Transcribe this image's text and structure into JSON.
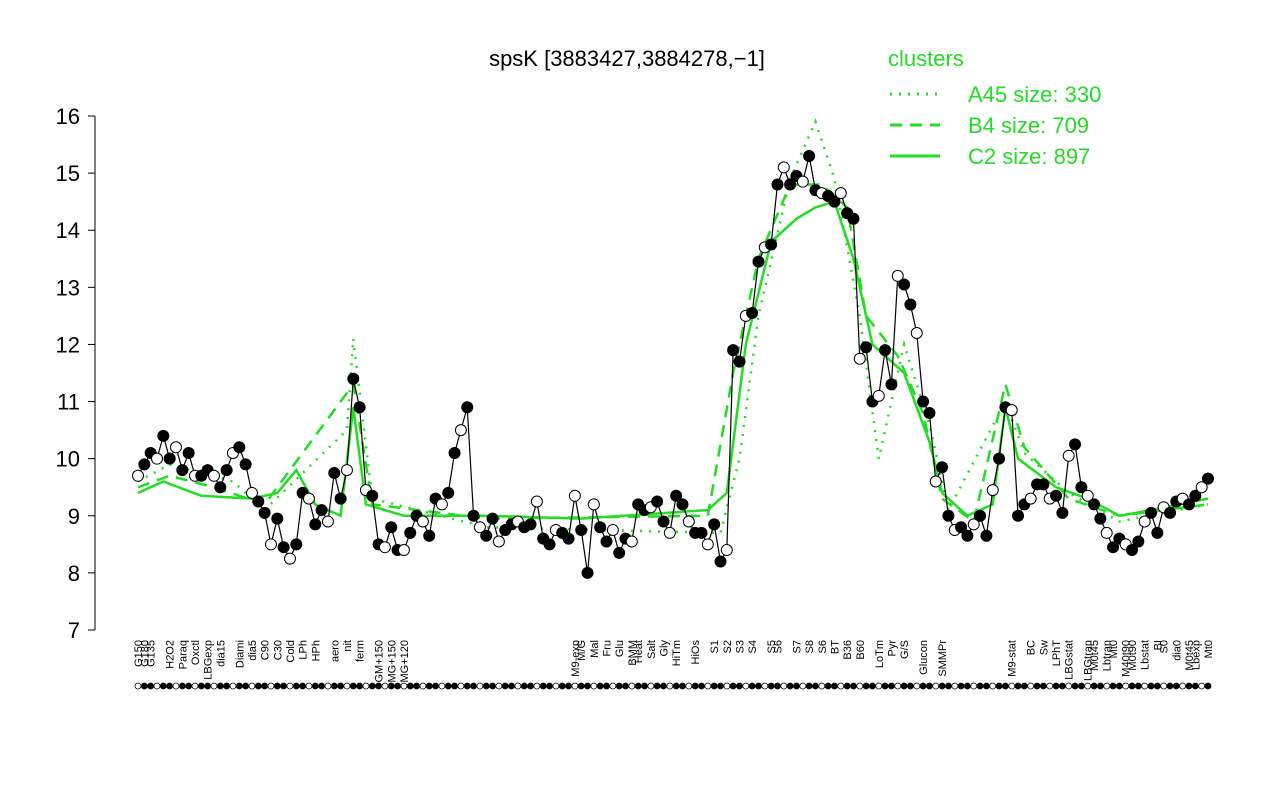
{
  "chart_data": {
    "type": "line",
    "title": "spsK [3883427,3884278,−1]",
    "categories": [
      "G150",
      "G180",
      "G135",
      null,
      null,
      "H2O2",
      null,
      "Paraq",
      null,
      "Oxctl",
      null,
      "LBGexp",
      null,
      "dia15",
      null,
      null,
      "Diami",
      null,
      "dia5",
      null,
      "C90",
      null,
      "C30",
      null,
      "Cold",
      null,
      "LPh",
      null,
      "HPh",
      null,
      null,
      "aero",
      null,
      "nit",
      null,
      "ferm",
      null,
      null,
      "GM+150",
      null,
      "MG+150",
      null,
      "MG+120",
      null,
      null,
      null,
      null,
      null,
      null,
      null,
      null,
      null,
      null,
      null,
      null,
      null,
      null,
      null,
      null,
      null,
      null,
      null,
      null,
      null,
      null,
      null,
      null,
      null,
      null,
      "M9-exp",
      "M/G",
      null,
      "Mal",
      null,
      "Fru",
      null,
      "Glu",
      null,
      "BMM",
      "Heat",
      null,
      "Salt",
      null,
      "Gly",
      null,
      "HiTm",
      null,
      null,
      "HiOs",
      null,
      null,
      "S1",
      null,
      "S2",
      null,
      "S3",
      null,
      "S4",
      null,
      null,
      "S5",
      "S6",
      null,
      null,
      "S7",
      null,
      "S8",
      null,
      "S6",
      null,
      "BT",
      null,
      "B36",
      null,
      "B60",
      null,
      null,
      "LoTm",
      null,
      "Pyr",
      null,
      "G/S",
      null,
      null,
      "Glucon",
      null,
      null,
      "SMMPr",
      null,
      null,
      null,
      null,
      null,
      null,
      null,
      null,
      null,
      null,
      "M9-stat",
      null,
      null,
      "BC",
      null,
      "Sw",
      null,
      "LPhT",
      null,
      "LBGstat",
      null,
      null,
      "LBGtran",
      "M0t45",
      null,
      "Lbtran",
      "Mt0",
      null,
      "M40t90",
      "M0t90",
      null,
      "Lbstat",
      null,
      "BI",
      "S0",
      null,
      "dia0",
      null,
      "M0t45",
      "Lbexp",
      null,
      "Mt0"
    ],
    "series": [
      {
        "color": "#000000",
        "values": [
          9.7,
          9.9,
          10.1,
          10.0,
          10.4,
          10.0,
          10.2,
          9.8,
          10.1,
          9.7,
          9.7,
          9.8,
          9.7,
          9.5,
          9.8,
          10.1,
          10.2,
          9.9,
          9.4,
          9.25,
          9.05,
          8.5,
          8.95,
          8.45,
          8.25,
          8.5,
          9.4,
          9.3,
          8.85,
          9.1,
          8.9,
          9.75,
          9.3,
          9.8,
          11.4,
          10.9,
          9.45,
          9.35,
          8.5,
          8.45,
          8.8,
          8.4,
          8.4,
          8.7,
          9.0,
          8.9,
          8.65,
          9.3,
          9.2,
          9.4,
          10.1,
          10.5,
          10.9,
          9.0,
          8.8,
          8.65,
          8.95,
          8.55,
          8.75,
          8.85,
          8.9,
          8.8,
          8.85,
          9.25,
          8.6,
          8.5,
          8.75,
          8.7,
          8.6,
          9.35,
          8.75,
          8.0,
          9.2,
          8.8,
          8.55,
          8.75,
          8.35,
          8.6,
          8.55,
          9.2,
          9.1,
          9.15,
          9.25,
          8.9,
          8.7,
          9.35,
          9.2,
          8.9,
          8.7,
          8.7,
          8.5,
          8.85,
          8.2,
          8.4,
          11.9,
          11.7,
          12.5,
          12.55,
          13.45,
          13.7,
          13.75,
          14.8,
          15.1,
          14.8,
          14.95,
          14.85,
          15.3,
          14.7,
          14.65,
          14.6,
          14.5,
          14.65,
          14.3,
          14.2,
          11.75,
          11.95,
          11.0,
          11.1,
          11.9,
          11.3,
          13.2,
          13.05,
          12.7,
          12.2,
          11.0,
          10.8,
          9.6,
          9.85,
          9.0,
          8.75,
          8.8,
          8.65,
          8.85,
          9.0,
          8.65,
          9.45,
          10.0,
          10.9,
          10.85,
          9.0,
          9.2,
          9.3,
          9.55,
          9.55,
          9.3,
          9.35,
          9.05,
          10.05,
          10.25,
          9.5,
          9.35,
          9.2,
          8.95,
          8.7,
          8.45,
          8.6,
          8.5,
          8.4,
          8.55,
          8.9,
          9.05,
          8.7,
          9.15,
          9.05,
          9.25,
          9.3,
          9.2,
          9.35,
          9.5,
          9.65
        ]
      }
    ],
    "legend_title": "clusters",
    "clusters": [
      {
        "name": "A45 size: 330",
        "style": "dotted",
        "color": "#22dd22",
        "x": [
          0,
          5,
          15,
          20,
          33,
          34,
          37,
          55,
          92,
          95,
          98,
          103,
          107,
          110,
          114,
          117,
          121,
          125,
          128,
          137,
          140,
          147,
          155,
          169
        ],
        "values": [
          9.6,
          9.9,
          9.6,
          9.1,
          10.5,
          12.1,
          9.3,
          8.8,
          8.7,
          10.0,
          12.5,
          14.9,
          15.9,
          14.9,
          12.5,
          10.0,
          12.0,
          10.6,
          9.1,
          11.0,
          10.1,
          9.4,
          8.9,
          9.2
        ]
      },
      {
        "name": "B4 size: 709",
        "style": "dashed",
        "color": "#22dd22",
        "x": [
          0,
          5,
          12,
          20,
          34,
          37,
          55,
          90,
          94,
          98,
          103,
          108,
          112,
          115,
          120,
          124,
          127,
          132,
          137,
          140,
          147,
          155,
          169
        ],
        "values": [
          9.5,
          9.7,
          9.5,
          9.2,
          11.3,
          9.2,
          8.95,
          9.0,
          11.5,
          13.5,
          14.8,
          14.8,
          14.4,
          12.5,
          11.8,
          10.8,
          9.3,
          8.9,
          11.3,
          10.2,
          9.3,
          9.0,
          9.2
        ]
      },
      {
        "name": "C2 size: 897",
        "style": "solid",
        "color": "#22dd22",
        "x": [
          0,
          4,
          10,
          18,
          22,
          25,
          28,
          32,
          34,
          36,
          42,
          55,
          70,
          90,
          93,
          96,
          100,
          104,
          107,
          110,
          113,
          116,
          121,
          125,
          127,
          131,
          135,
          137,
          139,
          145,
          150,
          155,
          160,
          169
        ],
        "values": [
          9.4,
          9.6,
          9.35,
          9.3,
          9.4,
          9.8,
          9.2,
          9.0,
          10.9,
          9.2,
          9.0,
          9.0,
          8.95,
          9.1,
          9.4,
          12.0,
          13.8,
          14.2,
          14.4,
          14.5,
          13.5,
          12.0,
          11.5,
          10.3,
          9.4,
          9.0,
          9.2,
          10.9,
          10.0,
          9.5,
          9.3,
          9.0,
          9.1,
          9.3
        ]
      }
    ],
    "ylim": [
      7,
      16
    ],
    "yticks": [
      7,
      8,
      9,
      10,
      11,
      12,
      13,
      14,
      15,
      16
    ]
  }
}
